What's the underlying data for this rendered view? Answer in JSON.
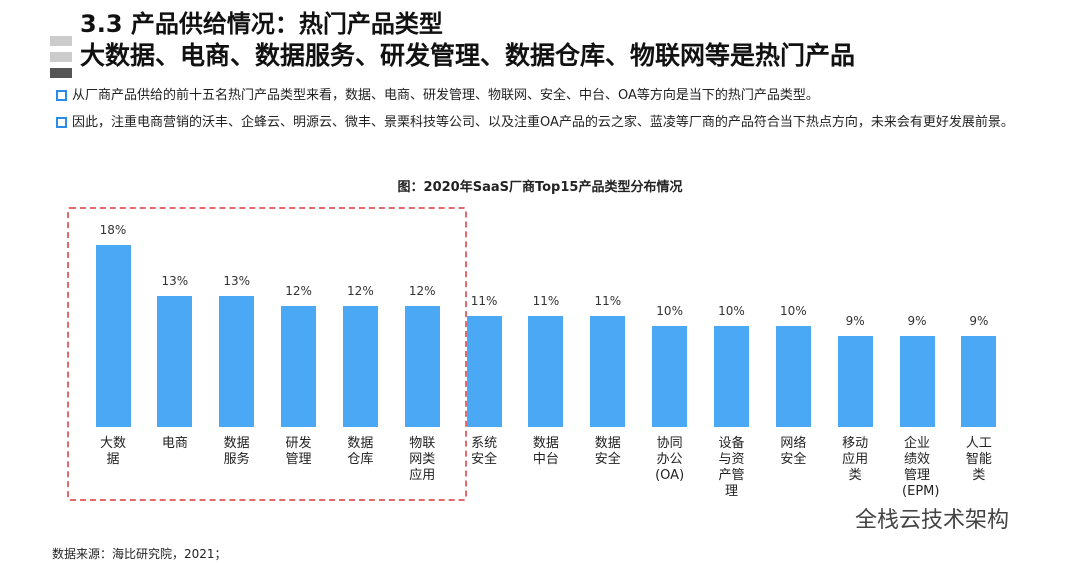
{
  "header": {
    "title": "3.3 产品供给情况：热门产品类型",
    "subtitle": "大数据、电商、数据服务、研发管理、数据仓库、物联网等是热门产品"
  },
  "bullets": [
    "从厂商产品供给的前十五名热门产品类型来看，数据、电商、研发管理、物联网、安全、中台、OA等方向是当下的热门产品类型。",
    "因此，注重电商营销的沃丰、企蜂云、明源云、微丰、景栗科技等公司、以及注重OA产品的云之家、蓝凌等厂商的产品符合当下热点方向，未来会有更好发展前景。"
  ],
  "chart_data": {
    "type": "bar",
    "title": "图：2020年SaaS厂商Top15产品类型分布情况",
    "categories": [
      "大数据",
      "电商",
      "数据服务",
      "研发管理",
      "数据仓库",
      "物联网类应用",
      "系统安全",
      "数据中台",
      "数据安全",
      "协同办公(OA)",
      "设备与资产管理",
      "网络安全",
      "移动应用类",
      "企业绩效管理(EPM)",
      "人工智能类"
    ],
    "values": [
      18,
      13,
      13,
      12,
      12,
      12,
      11,
      11,
      11,
      10,
      10,
      10,
      9,
      9,
      9
    ],
    "value_labels": [
      "18%",
      "13%",
      "13%",
      "12%",
      "12%",
      "12%",
      "11%",
      "11%",
      "11%",
      "10%",
      "10%",
      "10%",
      "9%",
      "9%",
      "9%"
    ],
    "color": "#4aa8f5"
  },
  "source": "数据来源：海比研究院，2021；",
  "watermark": "全栈云技术架构"
}
